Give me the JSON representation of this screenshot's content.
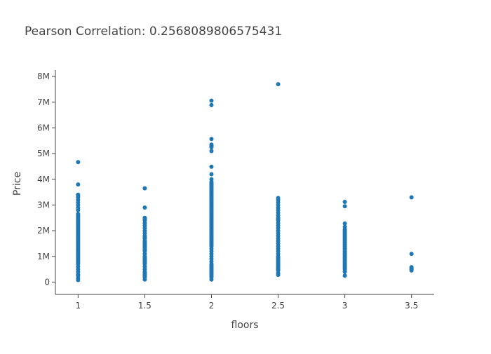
{
  "chart_data": {
    "type": "scatter",
    "title": "Pearson Correlation: 0.2568089806575431",
    "xlabel": "floors",
    "ylabel": "Price",
    "x_ticks": [
      1,
      1.5,
      2,
      2.5,
      3,
      3.5
    ],
    "x_tick_labels": [
      "1",
      "1.5",
      "2",
      "2.5",
      "3",
      "3.5"
    ],
    "y_ticks": [
      0,
      1000000,
      2000000,
      3000000,
      4000000,
      5000000,
      6000000,
      7000000,
      8000000
    ],
    "y_tick_labels": [
      "0",
      "1M",
      "2M",
      "3M",
      "4M",
      "5M",
      "6M",
      "7M",
      "8M"
    ],
    "xlim": [
      0.83,
      3.67
    ],
    "ylim": [
      -480000,
      8250000
    ],
    "grid": false,
    "legend": "none",
    "marker_color": "#1f77b4",
    "series": [
      {
        "x": [
          1,
          1,
          1,
          1,
          1,
          1,
          1,
          1,
          1,
          1,
          1,
          1,
          1,
          1,
          1,
          1,
          1,
          1,
          1,
          1,
          1,
          1,
          1,
          1,
          1,
          1,
          1,
          1,
          1,
          1,
          1,
          1,
          1,
          1,
          1,
          1,
          1,
          1,
          1,
          1,
          1,
          1,
          1,
          1,
          1,
          1,
          1,
          1,
          1,
          1,
          1,
          1,
          1,
          1,
          1,
          1,
          1,
          1.5,
          1.5,
          1.5,
          1.5,
          1.5,
          1.5,
          1.5,
          1.5,
          1.5,
          1.5,
          1.5,
          1.5,
          1.5,
          1.5,
          1.5,
          1.5,
          1.5,
          1.5,
          1.5,
          1.5,
          1.5,
          1.5,
          1.5,
          1.5,
          1.5,
          1.5,
          1.5,
          1.5,
          1.5,
          1.5,
          1.5,
          1.5,
          1.5,
          1.5,
          1.5,
          1.5,
          1.5,
          1.5,
          2,
          2,
          2,
          2,
          2,
          2,
          2,
          2,
          2,
          2,
          2,
          2,
          2,
          2,
          2,
          2,
          2,
          2,
          2,
          2,
          2,
          2,
          2,
          2,
          2,
          2,
          2,
          2,
          2,
          2,
          2,
          2,
          2,
          2,
          2,
          2,
          2,
          2,
          2,
          2,
          2,
          2,
          2,
          2,
          2,
          2,
          2,
          2,
          2,
          2,
          2,
          2,
          2,
          2,
          2,
          2,
          2,
          2,
          2,
          2,
          2,
          2,
          2,
          2,
          2,
          2,
          2,
          2,
          2,
          2,
          2,
          2,
          2,
          2,
          2,
          2,
          2,
          2,
          2,
          2.5,
          2.5,
          2.5,
          2.5,
          2.5,
          2.5,
          2.5,
          2.5,
          2.5,
          2.5,
          2.5,
          2.5,
          2.5,
          2.5,
          2.5,
          2.5,
          2.5,
          2.5,
          2.5,
          2.5,
          2.5,
          2.5,
          2.5,
          2.5,
          2.5,
          2.5,
          2.5,
          2.5,
          2.5,
          2.5,
          2.5,
          2.5,
          2.5,
          2.5,
          2.5,
          2.5,
          2.5,
          2.5,
          2.5,
          3,
          3,
          3,
          3,
          3,
          3,
          3,
          3,
          3,
          3,
          3,
          3,
          3,
          3,
          3,
          3,
          3,
          3,
          3,
          3,
          3,
          3,
          3,
          3,
          3,
          3,
          3,
          3,
          3,
          3,
          3,
          3,
          3,
          3,
          3,
          3,
          3,
          3,
          3.5,
          3.5,
          3.5,
          3.5,
          3.5,
          3.5
        ],
        "y": [
          4670000,
          3800000,
          3400000,
          3350000,
          3300000,
          3200000,
          3100000,
          3000000,
          2900000,
          2800000,
          2650000,
          2600000,
          2550000,
          2500000,
          2450000,
          2400000,
          2350000,
          2300000,
          2250000,
          2200000,
          2150000,
          2100000,
          2050000,
          2000000,
          1950000,
          1900000,
          1850000,
          1800000,
          1750000,
          1700000,
          1650000,
          1600000,
          1550000,
          1500000,
          1450000,
          1400000,
          1350000,
          1300000,
          1250000,
          1200000,
          1150000,
          1100000,
          1050000,
          1000000,
          950000,
          900000,
          850000,
          800000,
          750000,
          700000,
          600000,
          500000,
          400000,
          300000,
          250000,
          150000,
          80000,
          3650000,
          2900000,
          2500000,
          2450000,
          2400000,
          2300000,
          2200000,
          2100000,
          2000000,
          1900000,
          1800000,
          1750000,
          1700000,
          1600000,
          1550000,
          1500000,
          1450000,
          1400000,
          1350000,
          1300000,
          1250000,
          1200000,
          1100000,
          1000000,
          950000,
          900000,
          850000,
          800000,
          750000,
          700000,
          600000,
          500000,
          400000,
          350000,
          300000,
          250000,
          200000,
          100000,
          7060000,
          6890000,
          5570000,
          5350000,
          5300000,
          5250000,
          5100000,
          4490000,
          4200000,
          4000000,
          3900000,
          3850000,
          3800000,
          3750000,
          3700000,
          3650000,
          3600000,
          3550000,
          3500000,
          3450000,
          3400000,
          3350000,
          3300000,
          3250000,
          3200000,
          3150000,
          3100000,
          3050000,
          3000000,
          2950000,
          2900000,
          2850000,
          2800000,
          2750000,
          2700000,
          2650000,
          2600000,
          2550000,
          2500000,
          2450000,
          2400000,
          2350000,
          2300000,
          2250000,
          2200000,
          2150000,
          2100000,
          2050000,
          2000000,
          1950000,
          1900000,
          1850000,
          1800000,
          1750000,
          1700000,
          1650000,
          1600000,
          1550000,
          1500000,
          1450000,
          1400000,
          1300000,
          1200000,
          1100000,
          1000000,
          900000,
          800000,
          700000,
          650000,
          600000,
          550000,
          500000,
          450000,
          400000,
          350000,
          300000,
          250000,
          200000,
          100000,
          7700000,
          3270000,
          3200000,
          3100000,
          3000000,
          2900000,
          2800000,
          2700000,
          2600000,
          2500000,
          2450000,
          2400000,
          2300000,
          2200000,
          2100000,
          2000000,
          1900000,
          1800000,
          1700000,
          1600000,
          1500000,
          1400000,
          1300000,
          1200000,
          1100000,
          1000000,
          950000,
          900000,
          850000,
          800000,
          750000,
          700000,
          650000,
          600000,
          550000,
          500000,
          450000,
          350000,
          280000,
          3120000,
          2950000,
          2280000,
          2150000,
          2050000,
          2000000,
          1950000,
          1900000,
          1850000,
          1800000,
          1750000,
          1700000,
          1650000,
          1600000,
          1550000,
          1500000,
          1450000,
          1400000,
          1350000,
          1300000,
          1250000,
          1200000,
          1150000,
          1100000,
          1050000,
          1000000,
          950000,
          900000,
          850000,
          800000,
          750000,
          700000,
          650000,
          600000,
          550000,
          500000,
          400000,
          250000,
          3300000,
          1100000,
          580000,
          530000,
          500000,
          450000
        ]
      }
    ]
  }
}
